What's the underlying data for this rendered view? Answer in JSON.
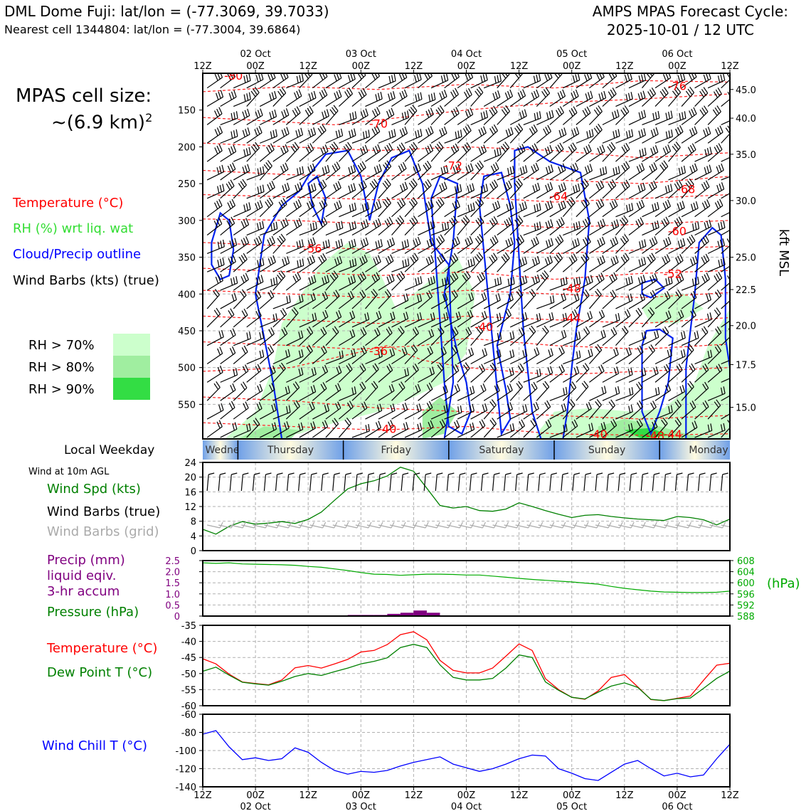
{
  "header": {
    "station_line": "DML Dome Fuji: lat/lon = (-77.3069, 39.7033)",
    "cell_line": "Nearest cell 1344804: lat/lon = (-77.3004, 39.6864)",
    "forecast_title": "AMPS MPAS Forecast Cycle:",
    "forecast_cycle": "2025-10-01 / 12 UTC"
  },
  "cell_size": {
    "line1": "MPAS cell size:",
    "line2": "~(6.9 km)",
    "sup": "2"
  },
  "legend": {
    "temperature": {
      "label": "Temperature (°C)",
      "color": "#ff0000"
    },
    "rh": {
      "label": "RH (%) wrt liq. wat",
      "color": "#33dd33"
    },
    "cloud": {
      "label": "Cloud/Precip outline",
      "color": "#0000ff"
    },
    "wind": {
      "label": "Wind Barbs (kts) (true)",
      "color": "#000000"
    },
    "rh_levels": [
      {
        "label": "RH > 70%",
        "color": "#ccffcc"
      },
      {
        "label": "RH > 80%",
        "color": "#a0eea0"
      },
      {
        "label": "RH > 90%",
        "color": "#33dd44"
      }
    ]
  },
  "time_axis": {
    "top_ticks": [
      "12Z",
      "00Z",
      "12Z",
      "00Z",
      "12Z",
      "00Z",
      "12Z",
      "00Z",
      "12Z",
      "00Z",
      "12Z"
    ],
    "dates": [
      "02 Oct",
      "03 Oct",
      "04 Oct",
      "05 Oct",
      "06 Oct"
    ]
  },
  "weekday": {
    "label": "Local Weekday",
    "days": [
      "Wednesday",
      "Thursday",
      "Friday",
      "Saturday",
      "Sunday",
      "Monday"
    ]
  },
  "chart_data": [
    {
      "type": "heatmap",
      "title": "",
      "ylabel_right": "kft MSL",
      "y_left_ticks": [
        150,
        200,
        250,
        300,
        350,
        400,
        450,
        500,
        550
      ],
      "y_right_ticks": [
        "45.0",
        "40.0",
        "35.0",
        "30.0",
        "25.0",
        "22.5",
        "20.0",
        "17.5",
        "15.0"
      ],
      "ylim": [
        597,
        100
      ],
      "xlim_hours": [
        0,
        120
      ],
      "temperature_contours": [
        {
          "label": "-80",
          "x": 7,
          "p": 103
        },
        {
          "label": "-76",
          "x": 108,
          "p": 117
        },
        {
          "label": "-70",
          "x": 40,
          "p": 168
        },
        {
          "label": "-72",
          "x": 57,
          "p": 225
        },
        {
          "label": "-68",
          "x": 110,
          "p": 257
        },
        {
          "label": "-64",
          "x": 81,
          "p": 267
        },
        {
          "label": "-60",
          "x": 108,
          "p": 314
        },
        {
          "label": "-56",
          "x": 25,
          "p": 338
        },
        {
          "label": "-52",
          "x": 107,
          "p": 372
        },
        {
          "label": "-48",
          "x": 84,
          "p": 392
        },
        {
          "label": "-44",
          "x": 84,
          "p": 432
        },
        {
          "label": "-40",
          "x": 64,
          "p": 444
        },
        {
          "label": "-36",
          "x": 40,
          "p": 477
        },
        {
          "label": "-40",
          "x": 42,
          "p": 583
        },
        {
          "label": "-40",
          "x": 90,
          "p": 590
        },
        {
          "label": "-48",
          "x": 103,
          "p": 592
        },
        {
          "label": "-44",
          "x": 107,
          "p": 590
        }
      ]
    },
    {
      "type": "line",
      "title": "Wind at 10m AGL",
      "x_hours": [
        0,
        3,
        6,
        9,
        12,
        15,
        18,
        21,
        24,
        27,
        30,
        33,
        36,
        39,
        42,
        45,
        48,
        51,
        54,
        57,
        60,
        63,
        66,
        69,
        72,
        75,
        78,
        81,
        84,
        87,
        90,
        93,
        96,
        99,
        102,
        105,
        108,
        111,
        114,
        117,
        120
      ],
      "series": [
        {
          "name": "Wind Spd (kts)",
          "color": "#008000",
          "values": [
            5.8,
            4.5,
            6.6,
            7.9,
            7.2,
            7.5,
            7.9,
            7.4,
            8.5,
            10.5,
            13.7,
            16.8,
            18.2,
            19.0,
            20.3,
            22.7,
            21.6,
            17.0,
            12.3,
            11.6,
            12.0,
            10.9,
            10.7,
            11.3,
            13.0,
            12.0,
            10.9,
            9.9,
            9.0,
            9.6,
            9.8,
            9.3,
            8.9,
            8.6,
            8.4,
            8.2,
            9.3,
            9.0,
            8.4,
            7.0,
            8.6
          ]
        }
      ],
      "legend": [
        "Wind Spd (kts)",
        "Wind Barbs (true)",
        "Wind Barbs (grid)"
      ],
      "legend_colors": [
        "#008000",
        "#000000",
        "#aaaaaa"
      ],
      "y_ticks": [
        0,
        4,
        8,
        12,
        16,
        20,
        24
      ],
      "ylim": [
        0,
        24
      ]
    },
    {
      "type": "bar",
      "title": "",
      "legend": [
        "Precip (mm)",
        "liquid eqiv.",
        "3-hr accum",
        "Pressure (hPa)"
      ],
      "legend_colors": [
        "#800080",
        "#800080",
        "#800080",
        "#00aa00"
      ],
      "precip_x_hours": [
        33,
        36,
        39,
        42,
        45,
        48,
        51
      ],
      "precip_values": [
        0.05,
        0.05,
        0.05,
        0.1,
        0.15,
        0.25,
        0.15
      ],
      "precip_color": "#800080",
      "y_left_ticks": [
        0,
        0.5,
        1.0,
        1.5,
        2.0,
        2.5
      ],
      "y_left_tick_labels": [
        "0",
        "0.5",
        "1.0",
        "1.5",
        "2.0",
        "2.5"
      ],
      "ylim_left": [
        0,
        2.5
      ],
      "pressure_series": {
        "name": "Pressure (hPa)",
        "color": "#00aa00",
        "x_hours": [
          0,
          3,
          6,
          9,
          12,
          15,
          18,
          21,
          24,
          27,
          30,
          33,
          36,
          39,
          42,
          45,
          48,
          51,
          54,
          57,
          60,
          63,
          66,
          69,
          72,
          75,
          78,
          81,
          84,
          87,
          90,
          93,
          96,
          99,
          102,
          105,
          108,
          111,
          114,
          117,
          120
        ],
        "values": [
          607.2,
          607.0,
          607.2,
          606.8,
          606.7,
          606.6,
          606.5,
          606.3,
          605.9,
          605.6,
          605.0,
          604.4,
          603.7,
          603.1,
          603.0,
          602.7,
          602.9,
          603.1,
          603.1,
          603.0,
          602.8,
          602.8,
          602.4,
          602.0,
          601.6,
          601.2,
          600.9,
          600.6,
          600.3,
          599.9,
          599.5,
          598.7,
          598.0,
          597.5,
          597.0,
          596.7,
          596.6,
          596.5,
          596.5,
          596.6,
          597.0
        ]
      },
      "y_right_ticks": [
        588,
        592,
        596,
        600,
        604,
        608
      ],
      "ylim_right": [
        588,
        608
      ],
      "ylabel_right": "(hPa)"
    },
    {
      "type": "line",
      "title": "",
      "x_hours": [
        0,
        3,
        6,
        9,
        12,
        15,
        18,
        21,
        24,
        27,
        30,
        33,
        36,
        39,
        42,
        45,
        48,
        51,
        54,
        57,
        60,
        63,
        66,
        69,
        72,
        75,
        78,
        81,
        84,
        87,
        90,
        93,
        96,
        99,
        102,
        105,
        108,
        111,
        114,
        117,
        120
      ],
      "series": [
        {
          "name": "Temperature (°C)",
          "color": "#ff0000",
          "values": [
            -45.4,
            -47.0,
            -50.2,
            -52.6,
            -53.1,
            -53.5,
            -52.0,
            -48.2,
            -47.5,
            -48.3,
            -47.0,
            -45.6,
            -43.3,
            -42.8,
            -41.0,
            -37.9,
            -37.0,
            -39.5,
            -45.9,
            -49.0,
            -49.8,
            -49.8,
            -48.3,
            -44.6,
            -40.8,
            -42.8,
            -51.6,
            -55.0,
            -57.4,
            -58.0,
            -55.4,
            -51.2,
            -50.3,
            -54.1,
            -58.1,
            -58.4,
            -57.7,
            -57.0,
            -52.1,
            -47.4,
            -46.8
          ]
        },
        {
          "name": "Dew Point T (°C)",
          "color": "#008000",
          "values": [
            -49.3,
            -48.0,
            -50.5,
            -52.7,
            -53.2,
            -53.6,
            -52.4,
            -50.9,
            -50.0,
            -50.6,
            -49.4,
            -48.3,
            -47.0,
            -46.2,
            -45.1,
            -41.9,
            -40.9,
            -41.9,
            -47.3,
            -51.2,
            -52.0,
            -52.0,
            -51.5,
            -48.3,
            -44.2,
            -45.0,
            -52.6,
            -55.2,
            -57.4,
            -57.9,
            -55.8,
            -53.9,
            -52.9,
            -54.3,
            -58.0,
            -58.4,
            -57.8,
            -57.6,
            -54.6,
            -51.5,
            -49.2
          ]
        }
      ],
      "y_ticks": [
        -60,
        -55,
        -50,
        -45,
        -40,
        -35
      ],
      "ylim": [
        -60,
        -35
      ]
    },
    {
      "type": "line",
      "title": "",
      "x_hours": [
        0,
        3,
        6,
        9,
        12,
        15,
        18,
        21,
        24,
        27,
        30,
        33,
        36,
        39,
        42,
        45,
        48,
        51,
        54,
        57,
        60,
        63,
        66,
        69,
        72,
        75,
        78,
        81,
        84,
        87,
        90,
        93,
        96,
        99,
        102,
        105,
        108,
        111,
        114,
        117,
        120
      ],
      "series": [
        {
          "name": "Wind Chill T (°C)",
          "color": "#0000ff",
          "values": [
            -82,
            -78,
            -96,
            -110,
            -108,
            -111,
            -109,
            -97,
            -102,
            -113,
            -122,
            -126,
            -123,
            -124,
            -122,
            -117,
            -113,
            -110,
            -107,
            -115,
            -119,
            -123,
            -120,
            -115,
            -109,
            -105,
            -106,
            -120,
            -125,
            -131,
            -133,
            -124,
            -115,
            -111,
            -120,
            -128,
            -125,
            -129,
            -127,
            -109,
            -93
          ]
        }
      ],
      "y_ticks": [
        -140,
        -120,
        -100,
        -80,
        -60
      ],
      "ylim": [
        -140,
        -60
      ]
    }
  ]
}
